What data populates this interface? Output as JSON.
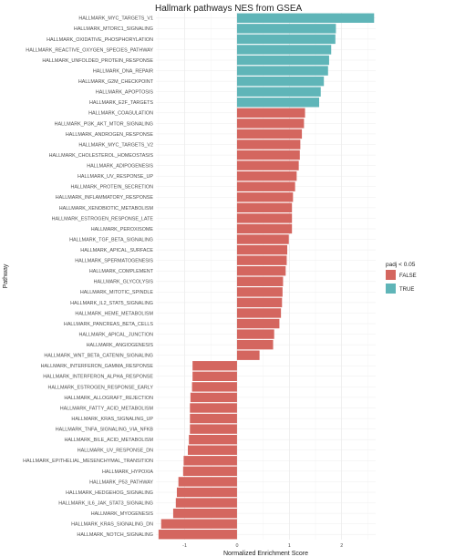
{
  "chart_data": {
    "type": "bar",
    "orientation": "horizontal",
    "title": "Hallmark pathways NES from GSEA",
    "xlabel": "Normalized Enrichment Score",
    "ylabel": "Pathway",
    "xlim": [
      -1.55,
      2.65
    ],
    "xticks": [
      -1,
      0,
      1,
      2
    ],
    "grid": true,
    "legend": {
      "title": "padj < 0.05",
      "position": "right",
      "entries": [
        {
          "label": "FALSE",
          "color": "#d4665f"
        },
        {
          "label": "TRUE",
          "color": "#5fb5b8"
        }
      ]
    },
    "categories": [
      "HALLMARK_MYC_TARGETS_V1",
      "HALLMARK_MTORC1_SIGNALING",
      "HALLMARK_OXIDATIVE_PHOSPHORYLATION",
      "HALLMARK_REACTIVE_OXYGEN_SPECIES_PATHWAY",
      "HALLMARK_UNFOLDED_PROTEIN_RESPONSE",
      "HALLMARK_DNA_REPAIR",
      "HALLMARK_G2M_CHECKPOINT",
      "HALLMARK_APOPTOSIS",
      "HALLMARK_E2F_TARGETS",
      "HALLMARK_COAGULATION",
      "HALLMARK_PI3K_AKT_MTOR_SIGNALING",
      "HALLMARK_ANDROGEN_RESPONSE",
      "HALLMARK_MYC_TARGETS_V2",
      "HALLMARK_CHOLESTEROL_HOMEOSTASIS",
      "HALLMARK_ADIPOGENESIS",
      "HALLMARK_UV_RESPONSE_UP",
      "HALLMARK_PROTEIN_SECRETION",
      "HALLMARK_INFLAMMATORY_RESPONSE",
      "HALLMARK_XENOBIOTIC_METABOLISM",
      "HALLMARK_ESTROGEN_RESPONSE_LATE",
      "HALLMARK_PEROXISOME",
      "HALLMARK_TGF_BETA_SIGNALING",
      "HALLMARK_APICAL_SURFACE",
      "HALLMARK_SPERMATOGENESIS",
      "HALLMARK_COMPLEMENT",
      "HALLMARK_GLYCOLYSIS",
      "HALLMARK_MITOTIC_SPINDLE",
      "HALLMARK_IL2_STAT5_SIGNALING",
      "HALLMARK_HEME_METABOLISM",
      "HALLMARK_PANCREAS_BETA_CELLS",
      "HALLMARK_APICAL_JUNCTION",
      "HALLMARK_ANGIOGENESIS",
      "HALLMARK_WNT_BETA_CATENIN_SIGNALING",
      "HALLMARK_INTERFERON_GAMMA_RESPONSE",
      "HALLMARK_INTERFERON_ALPHA_RESPONSE",
      "HALLMARK_ESTROGEN_RESPONSE_EARLY",
      "HALLMARK_ALLOGRAFT_REJECTION",
      "HALLMARK_FATTY_ACID_METABOLISM",
      "HALLMARK_KRAS_SIGNALING_UP",
      "HALLMARK_TNFA_SIGNALING_VIA_NFKB",
      "HALLMARK_BILE_ACID_METABOLISM",
      "HALLMARK_UV_RESPONSE_DN",
      "HALLMARK_EPITHELIAL_MESENCHYMAL_TRANSITION",
      "HALLMARK_HYPOXIA",
      "HALLMARK_P53_PATHWAY",
      "HALLMARK_HEDGEHOG_SIGNALING",
      "HALLMARK_IL6_JAK_STAT3_SIGNALING",
      "HALLMARK_MYOGENESIS",
      "HALLMARK_KRAS_SIGNALING_DN",
      "HALLMARK_NOTCH_SIGNALING"
    ],
    "values": [
      2.62,
      1.89,
      1.88,
      1.8,
      1.76,
      1.74,
      1.66,
      1.6,
      1.57,
      1.3,
      1.28,
      1.24,
      1.21,
      1.2,
      1.18,
      1.14,
      1.11,
      1.07,
      1.05,
      1.05,
      1.05,
      0.99,
      0.96,
      0.95,
      0.93,
      0.88,
      0.87,
      0.86,
      0.84,
      0.81,
      0.71,
      0.69,
      0.43,
      -0.85,
      -0.85,
      -0.86,
      -0.89,
      -0.9,
      -0.9,
      -0.9,
      -0.92,
      -0.94,
      -1.02,
      -1.03,
      -1.12,
      -1.15,
      -1.17,
      -1.22,
      -1.45,
      -1.5
    ],
    "significant": [
      true,
      true,
      true,
      true,
      true,
      true,
      true,
      true,
      true,
      false,
      false,
      false,
      false,
      false,
      false,
      false,
      false,
      false,
      false,
      false,
      false,
      false,
      false,
      false,
      false,
      false,
      false,
      false,
      false,
      false,
      false,
      false,
      false,
      false,
      false,
      false,
      false,
      false,
      false,
      false,
      false,
      false,
      false,
      false,
      false,
      false,
      false,
      false,
      false,
      false
    ]
  }
}
